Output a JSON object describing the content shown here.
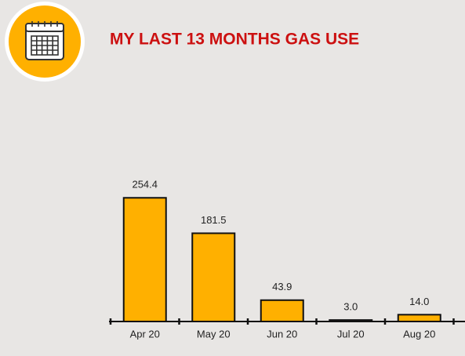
{
  "chart_data": {
    "type": "bar",
    "title": "MY LAST 13 MONTHS GAS USE",
    "categories": [
      "Apr 20",
      "May 20",
      "Jun 20",
      "Jul 20",
      "Aug 20"
    ],
    "values": [
      254.4,
      181.5,
      43.9,
      3.0,
      14.0
    ],
    "value_labels": [
      "254.4",
      "181.5",
      "43.9",
      "3.0",
      "14.0"
    ],
    "color": "#ffb000",
    "ylim": [
      0,
      300
    ]
  }
}
